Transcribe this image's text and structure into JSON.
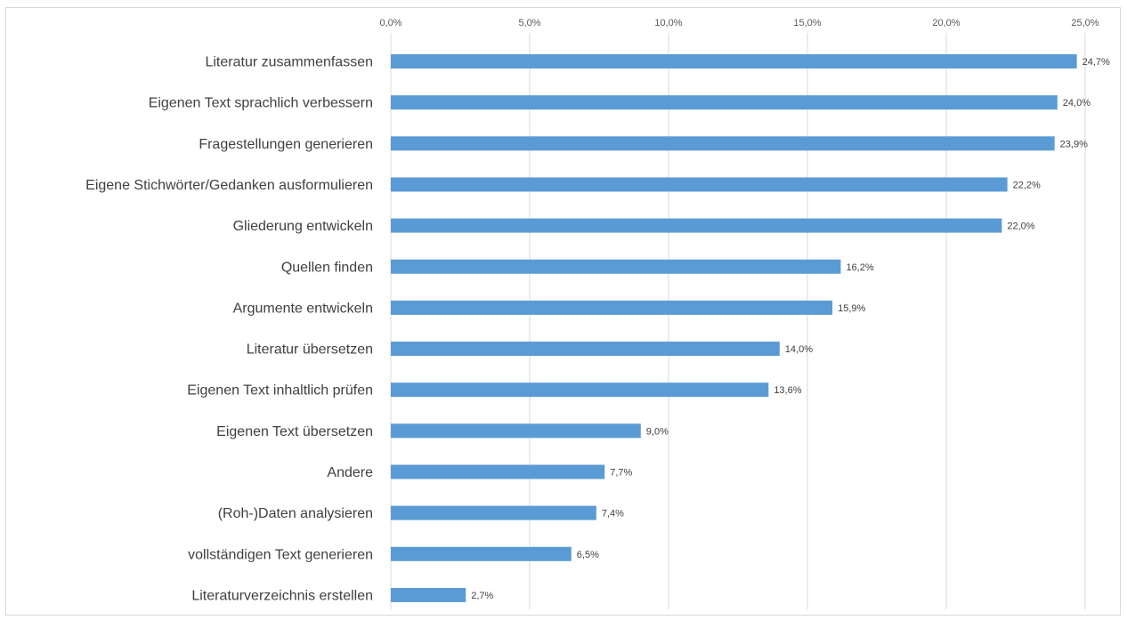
{
  "chart_data": {
    "type": "bar",
    "orientation": "horizontal",
    "categories": [
      "Literatur zusammenfassen",
      "Eigenen Text sprachlich verbessern",
      "Fragestellungen generieren",
      "Eigene Stichwörter/Gedanken ausformulieren",
      "Gliederung entwickeln",
      "Quellen finden",
      "Argumente entwickeln",
      "Literatur übersetzen",
      "Eigenen Text inhaltlich prüfen",
      "Eigenen Text übersetzen",
      "Andere",
      "(Roh-)Daten analysieren",
      "vollständigen Text generieren",
      "Literaturverzeichnis erstellen"
    ],
    "values": [
      24.7,
      24.0,
      23.9,
      22.2,
      22.0,
      16.2,
      15.9,
      14.0,
      13.6,
      9.0,
      7.7,
      7.4,
      6.5,
      2.7
    ],
    "value_labels": [
      "24,7%",
      "24,0%",
      "23,9%",
      "22,2%",
      "22,0%",
      "16,2%",
      "15,9%",
      "14,0%",
      "13,6%",
      "9,0%",
      "7,7%",
      "7,4%",
      "6,5%",
      "2,7%"
    ],
    "xlim": [
      0,
      25
    ],
    "x_ticks": [
      0,
      5,
      10,
      15,
      20,
      25
    ],
    "x_tick_labels": [
      "0,0%",
      "5,0%",
      "10,0%",
      "15,0%",
      "20,0%",
      "25,0%"
    ],
    "x_axis_position": "top",
    "grid": true,
    "bar_color": "#5b9bd5",
    "grid_color": "#d9d9d9",
    "title": "",
    "xlabel": "",
    "ylabel": ""
  }
}
